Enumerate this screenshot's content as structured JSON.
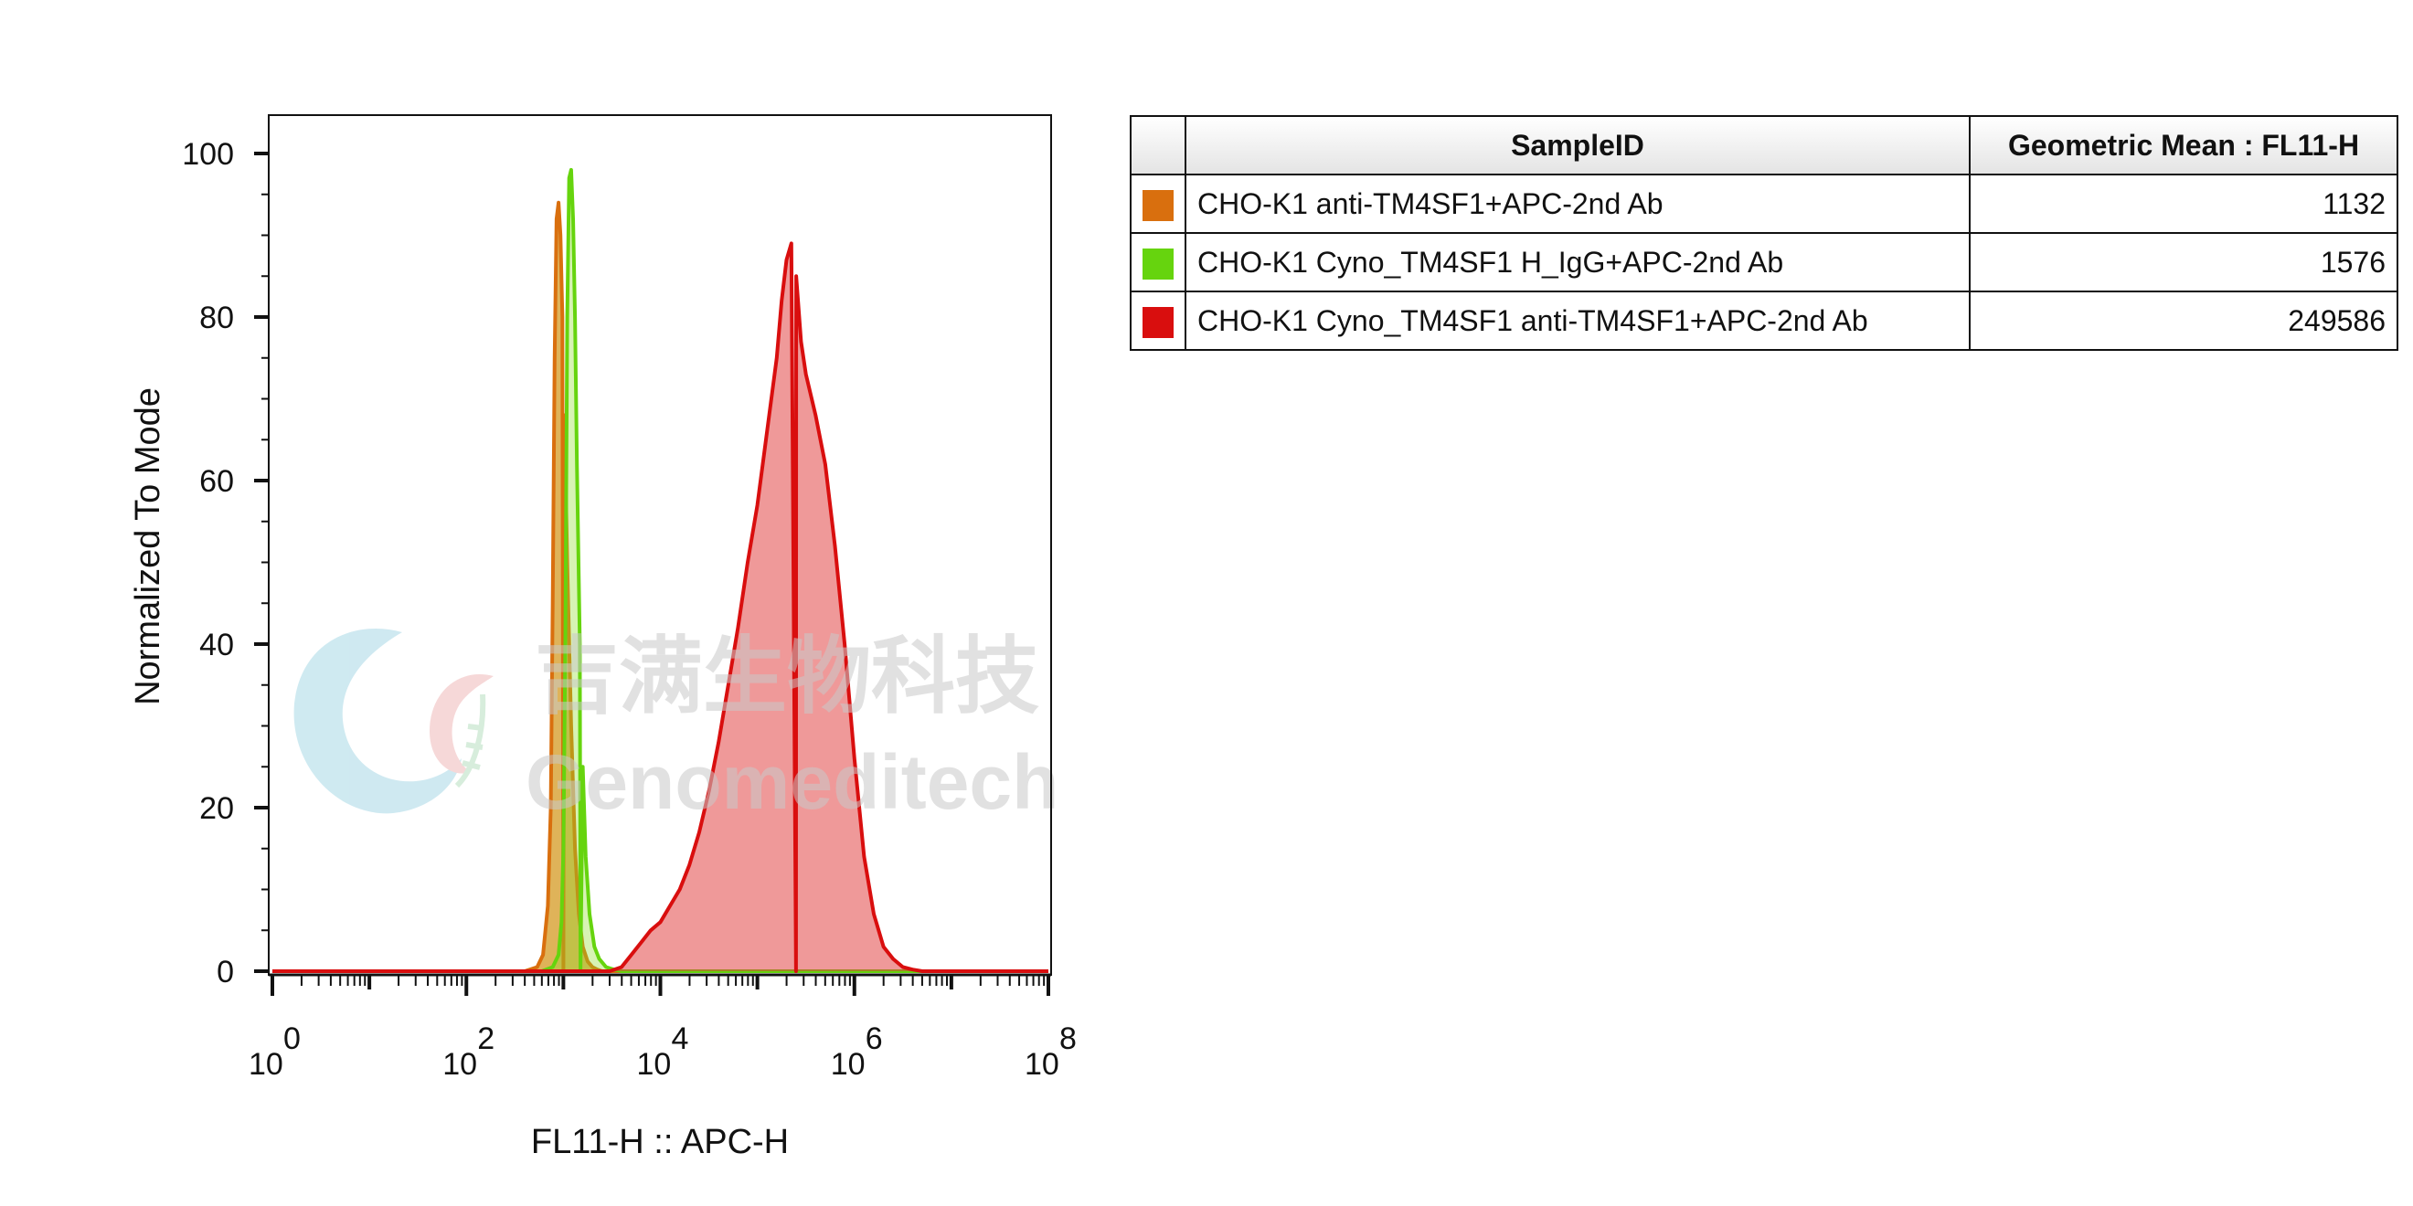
{
  "chart_data": {
    "type": "area",
    "xlabel": "FL11-H :: APC-H",
    "ylabel": "Normalized To Mode",
    "xscale": "log",
    "xlim": [
      1,
      100000000
    ],
    "ylim": [
      0,
      105
    ],
    "x_ticks": [
      {
        "base": "10",
        "exp": "0"
      },
      {
        "base": "10",
        "exp": "2"
      },
      {
        "base": "10",
        "exp": "4"
      },
      {
        "base": "10",
        "exp": "6"
      },
      {
        "base": "10",
        "exp": "8"
      }
    ],
    "y_ticks": [
      "0",
      "20",
      "40",
      "60",
      "80",
      "100"
    ],
    "grid": false,
    "legend_placement": "right table",
    "series": [
      {
        "name": "CHO-K1 anti-TM4SF1+APC-2nd Ab",
        "color": "#d96f0e",
        "fill": "rgba(210,150,25,0.72)",
        "x": [
          1000,
          400,
          537,
          617,
          692,
          741,
          776,
          813,
          851,
          891,
          933,
          977,
          1023,
          1096,
          1202,
          1318,
          1445,
          1585,
          1778,
          1995,
          2239,
          2512,
          3000
        ],
        "y": [
          0,
          0,
          0.5,
          2,
          8,
          20,
          45,
          75,
          92,
          94,
          90,
          80,
          68,
          50,
          30,
          15,
          7,
          3,
          1.2,
          0.5,
          0.2,
          0,
          0
        ]
      },
      {
        "name": "CHO-K1 Cyno_TM4SF1 H_IgG+APC-2nd Ab",
        "color": "#66d40e",
        "fill": "rgba(140,220,40,0.35)",
        "x": [
          1500,
          600,
          776,
          891,
          955,
          1000,
          1047,
          1096,
          1148,
          1202,
          1259,
          1318,
          1380,
          1479,
          1585,
          1698,
          1862,
          2089,
          2344,
          2754,
          3311,
          4000
        ],
        "y": [
          0,
          0,
          0.5,
          2,
          6,
          15,
          40,
          80,
          97,
          98,
          92,
          80,
          62,
          40,
          25,
          14,
          7,
          3,
          1.5,
          0.5,
          0.2,
          0
        ]
      },
      {
        "name": "CHO-K1 Cyno_TM4SF1 anti-TM4SF1+APC-2nd Ab",
        "color": "#d90e0e",
        "fill": "rgba(225,60,60,0.52)",
        "x": [
          250000,
          3000,
          3981,
          5012,
          6310,
          7943,
          10000,
          12589,
          15849,
          19953,
          25119,
          31623,
          39811,
          50119,
          63096,
          79433,
          100000,
          125893,
          158489,
          177828,
          199526,
          223872,
          251189,
          281838,
          316228,
          398107,
          501187,
          630957,
          794328,
          1000000,
          1258925,
          1584893,
          1995262,
          2511886,
          3162278,
          3981072,
          5011872
        ],
        "y": [
          0,
          0,
          0.5,
          2,
          3.5,
          5,
          6,
          8,
          10,
          13,
          17,
          22,
          28,
          35,
          42,
          50,
          57,
          66,
          75,
          82,
          87,
          89,
          85,
          77,
          73,
          68,
          62,
          52,
          40,
          26,
          14,
          7,
          3,
          1.5,
          0.5,
          0.2,
          0
        ]
      }
    ]
  },
  "legend_table": {
    "headers": {
      "sample_id": "SampleID",
      "geometric_mean": "Geometric Mean : FL11-H"
    },
    "rows": [
      {
        "color": "#d96f0e",
        "sample_id": "CHO-K1 anti-TM4SF1+APC-2nd Ab",
        "geometric_mean": "1132"
      },
      {
        "color": "#66d40e",
        "sample_id": "CHO-K1 Cyno_TM4SF1 H_IgG+APC-2nd Ab",
        "geometric_mean": "1576"
      },
      {
        "color": "#d90e0e",
        "sample_id": "CHO-K1 Cyno_TM4SF1 anti-TM4SF1+APC-2nd Ab",
        "geometric_mean": "249586"
      }
    ]
  },
  "watermark": {
    "chinese_text": "吉满生物科技",
    "english_text": "Genomeditech"
  }
}
